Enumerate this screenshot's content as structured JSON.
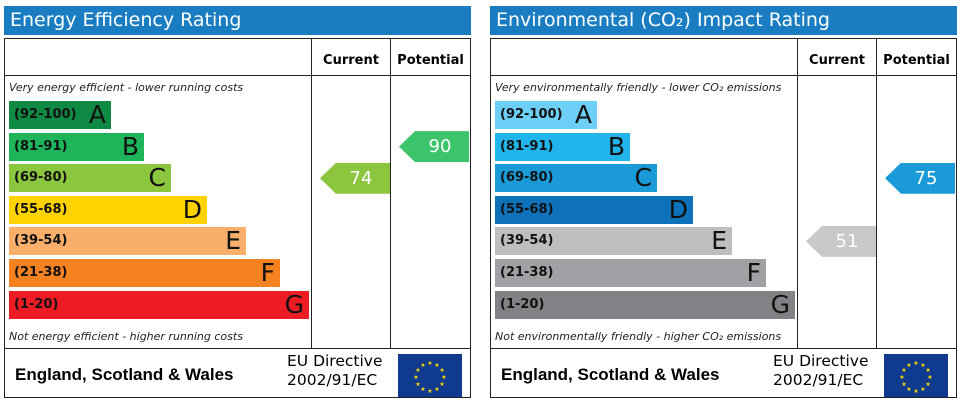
{
  "chart_data": [
    {
      "type": "bar",
      "title": "Energy Efficiency Rating",
      "columns": [
        "Current",
        "Potential"
      ],
      "top_note": "Very energy efficient - lower running costs",
      "bottom_note": "Not energy efficient - higher running costs",
      "bands": [
        {
          "range": "(92-100)",
          "letter": "A",
          "color": "#0f8a44"
        },
        {
          "range": "(81-91)",
          "letter": "B",
          "color": "#1db45a"
        },
        {
          "range": "(69-80)",
          "letter": "C",
          "color": "#8cc63f"
        },
        {
          "range": "(55-68)",
          "letter": "D",
          "color": "#ffd200"
        },
        {
          "range": "(39-54)",
          "letter": "E",
          "color": "#f9af6a"
        },
        {
          "range": "(21-38)",
          "letter": "F",
          "color": "#f58220"
        },
        {
          "range": "(1-20)",
          "letter": "G",
          "color": "#ed1c24"
        }
      ],
      "current": {
        "value": "74",
        "band": "C",
        "color": "#8cc63f"
      },
      "potential": {
        "value": "90",
        "band": "B",
        "color": "#3cc46a"
      },
      "footer": {
        "region": "England, Scotland & Wales",
        "directive_line1": "EU Directive",
        "directive_line2": "2002/91/EC"
      }
    },
    {
      "type": "bar",
      "title": "Environmental (CO₂) Impact Rating",
      "columns": [
        "Current",
        "Potential"
      ],
      "top_note": "Very environmentally friendly - lower CO₂ emissions",
      "bottom_note": "Not environmentally friendly - higher CO₂ emissions",
      "bands": [
        {
          "range": "(92-100)",
          "letter": "A",
          "color": "#6dcff6"
        },
        {
          "range": "(81-91)",
          "letter": "B",
          "color": "#22b5eb"
        },
        {
          "range": "(69-80)",
          "letter": "C",
          "color": "#1a9ad6"
        },
        {
          "range": "(55-68)",
          "letter": "D",
          "color": "#0d72b9"
        },
        {
          "range": "(39-54)",
          "letter": "E",
          "color": "#bcbec0"
        },
        {
          "range": "(21-38)",
          "letter": "F",
          "color": "#9fa1a4"
        },
        {
          "range": "(1-20)",
          "letter": "G",
          "color": "#808285"
        }
      ],
      "current": {
        "value": "51",
        "band": "E",
        "color": "#c8c9cb"
      },
      "potential": {
        "value": "75",
        "band": "C",
        "color": "#1a9ad6"
      },
      "footer": {
        "region": "England, Scotland & Wales",
        "directive_line1": "EU Directive",
        "directive_line2": "2002/91/EC"
      }
    }
  ]
}
